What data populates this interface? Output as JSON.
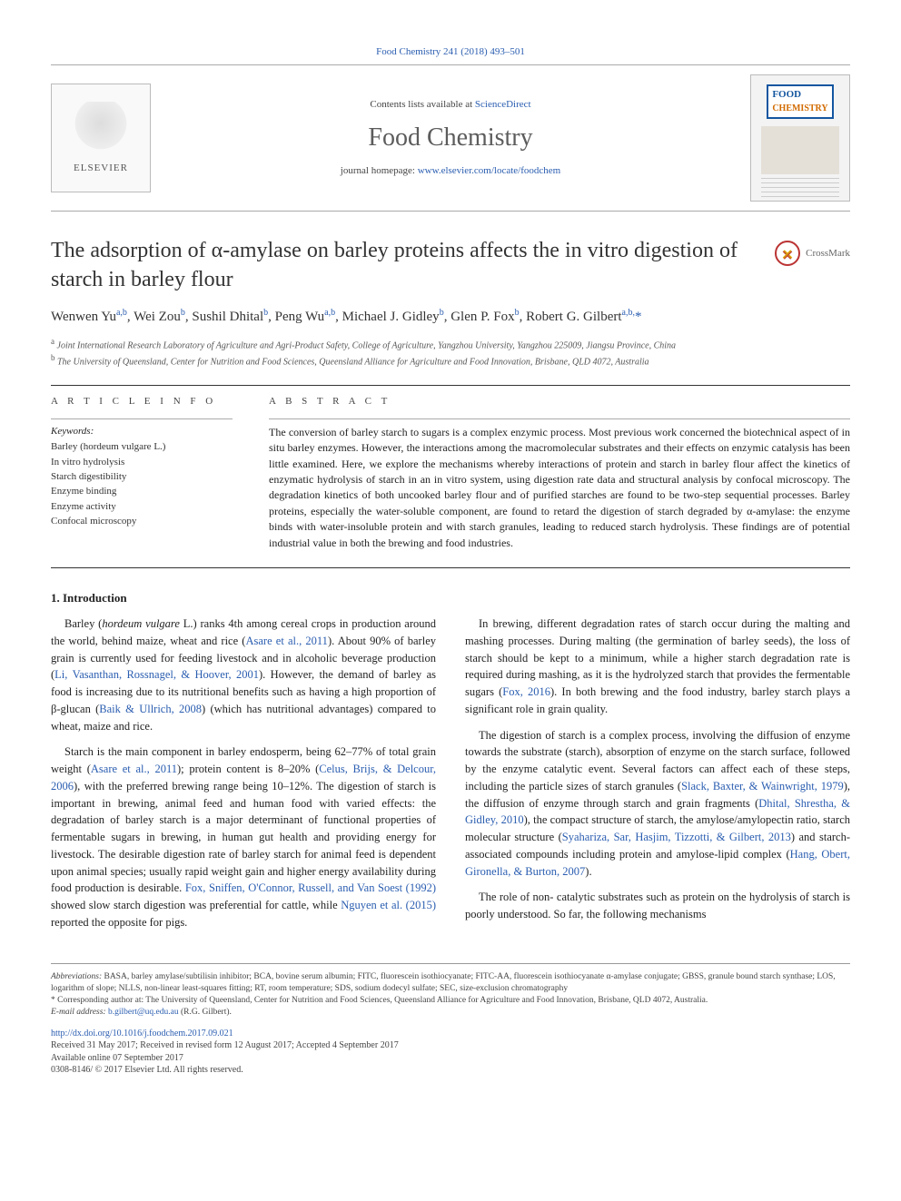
{
  "journal": {
    "top_citation": "Food Chemistry 241 (2018) 493–501",
    "contents_line_prefix": "Contents lists available at ",
    "contents_line_link": "ScienceDirect",
    "title": "Food Chemistry",
    "homepage_prefix": "journal homepage: ",
    "homepage_link": "www.elsevier.com/locate/foodchem",
    "publisher_name": "ELSEVIER",
    "cover_badge_top": "FOOD",
    "cover_badge_bottom": "CHEMISTRY"
  },
  "crossmark_label": "CrossMark",
  "article": {
    "title": "The adsorption of α-amylase on barley proteins affects the in vitro digestion of starch in barley flour",
    "authors_html": "Wenwen Yu<sup>a,b</sup>, Wei Zou<sup>b</sup>, Sushil Dhital<sup>b</sup>, Peng Wu<sup>a,b</sup>, Michael J. Gidley<sup>b</sup>, Glen P. Fox<sup>b</sup>, Robert G. Gilbert<sup>a,b,</sup><span class=\"corr\">*</span>",
    "affiliations": [
      "a Joint International Research Laboratory of Agriculture and Agri-Product Safety, College of Agriculture, Yangzhou University, Yangzhou 225009, Jiangsu Province, China",
      "b The University of Queensland, Center for Nutrition and Food Sciences, Queensland Alliance for Agriculture and Food Innovation, Brisbane, QLD 4072, Australia"
    ],
    "article_info_head": "A R T I C L E  I N F O",
    "abstract_head": "A B S T R A C T",
    "keywords_label": "Keywords:",
    "keywords": [
      "Barley (hordeum vulgare L.)",
      "In vitro hydrolysis",
      "Starch digestibility",
      "Enzyme binding",
      "Enzyme activity",
      "Confocal microscopy"
    ],
    "abstract": "The conversion of barley starch to sugars is a complex enzymic process. Most previous work concerned the biotechnical aspect of in situ barley enzymes. However, the interactions among the macromolecular substrates and their effects on enzymic catalysis has been little examined. Here, we explore the mechanisms whereby interactions of protein and starch in barley flour affect the kinetics of enzymatic hydrolysis of starch in an in vitro system, using digestion rate data and structural analysis by confocal microscopy. The degradation kinetics of both uncooked barley flour and of purified starches are found to be two-step sequential processes. Barley proteins, especially the water-soluble component, are found to retard the digestion of starch degraded by α-amylase: the enzyme binds with water-insoluble protein and with starch granules, leading to reduced starch hydrolysis. These findings are of potential industrial value in both the brewing and food industries."
  },
  "intro": {
    "heading": "1. Introduction",
    "paragraphs": [
      "Barley (<i>hordeum vulgare</i> L.) ranks 4th among cereal crops in production around the world, behind maize, wheat and rice (<a>Asare et al., 2011</a>). About 90% of barley grain is currently used for feeding livestock and in alcoholic beverage production (<a>Li, Vasanthan, Rossnagel, & Hoover, 2001</a>). However, the demand of barley as food is increasing due to its nutritional benefits such as having a high proportion of β-glucan (<a>Baik & Ullrich, 2008</a>) (which has nutritional advantages) compared to wheat, maize and rice.",
      "Starch is the main component in barley endosperm, being 62–77% of total grain weight (<a>Asare et al., 2011</a>); protein content is 8–20% (<a>Celus, Brijs, & Delcour, 2006</a>), with the preferred brewing range being 10–12%. The digestion of starch is important in brewing, animal feed and human food with varied effects: the degradation of barley starch is a major determinant of functional properties of fermentable sugars in brewing, in human gut health and providing energy for livestock. The desirable digestion rate of barley starch for animal feed is dependent upon animal species; usually rapid weight gain and higher energy availability during food production is desirable. <a>Fox, Sniffen, O'Connor, Russell, and Van Soest (1992)</a> showed slow starch digestion was preferential for cattle, while <a>Nguyen et al. (2015)</a> reported the opposite for pigs.",
      "In brewing, different degradation rates of starch occur during the malting and mashing processes. During malting (the germination of barley seeds), the loss of starch should be kept to a minimum, while a higher starch degradation rate is required during mashing, as it is the hydrolyzed starch that provides the fermentable sugars (<a>Fox, 2016</a>). In both brewing and the food industry, barley starch plays a significant role in grain quality.",
      "The digestion of starch is a complex process, involving the diffusion of enzyme towards the substrate (starch), absorption of enzyme on the starch surface, followed by the enzyme catalytic event. Several factors can affect each of these steps, including the particle sizes of starch granules (<a>Slack, Baxter, & Wainwright, 1979</a>), the diffusion of enzyme through starch and grain fragments (<a>Dhital, Shrestha, & Gidley, 2010</a>), the compact structure of starch, the amylose/amylopectin ratio, starch molecular structure (<a>Syahariza, Sar, Hasjim, Tizzotti, & Gilbert, 2013</a>) and starch-associated compounds including protein and amylose-lipid complex (<a>Hang, Obert, Gironella, & Burton, 2007</a>).",
      "The role of non- catalytic substrates such as protein on the hydrolysis of starch is poorly understood. So far, the following mechanisms"
    ]
  },
  "footer": {
    "abbrev_label": "Abbreviations:",
    "abbrev_text": " BASA, barley amylase/subtilisin inhibitor; BCA, bovine serum albumin; FITC, fluorescein isothiocyanate; FITC-AA, fluorescein isothiocyanate α-amylase conjugate; GBSS, granule bound starch synthase; LOS, logarithm of slope; NLLS, non-linear least-squares fitting; RT, room temperature; SDS, sodium dodecyl sulfate; SEC, size-exclusion chromatography",
    "corr_note": "* Corresponding author at: The University of Queensland, Center for Nutrition and Food Sciences, Queensland Alliance for Agriculture and Food Innovation, Brisbane, QLD 4072, Australia.",
    "email_label": "E-mail address: ",
    "email": "b.gilbert@uq.edu.au",
    "email_suffix": " (R.G. Gilbert).",
    "doi": "http://dx.doi.org/10.1016/j.foodchem.2017.09.021",
    "history": "Received 31 May 2017; Received in revised form 12 August 2017; Accepted 4 September 2017",
    "online": "Available online 07 September 2017",
    "copyright": "0308-8146/ © 2017 Elsevier Ltd. All rights reserved."
  },
  "colors": {
    "link": "#2a5db0",
    "text": "#222",
    "muted": "#555"
  }
}
